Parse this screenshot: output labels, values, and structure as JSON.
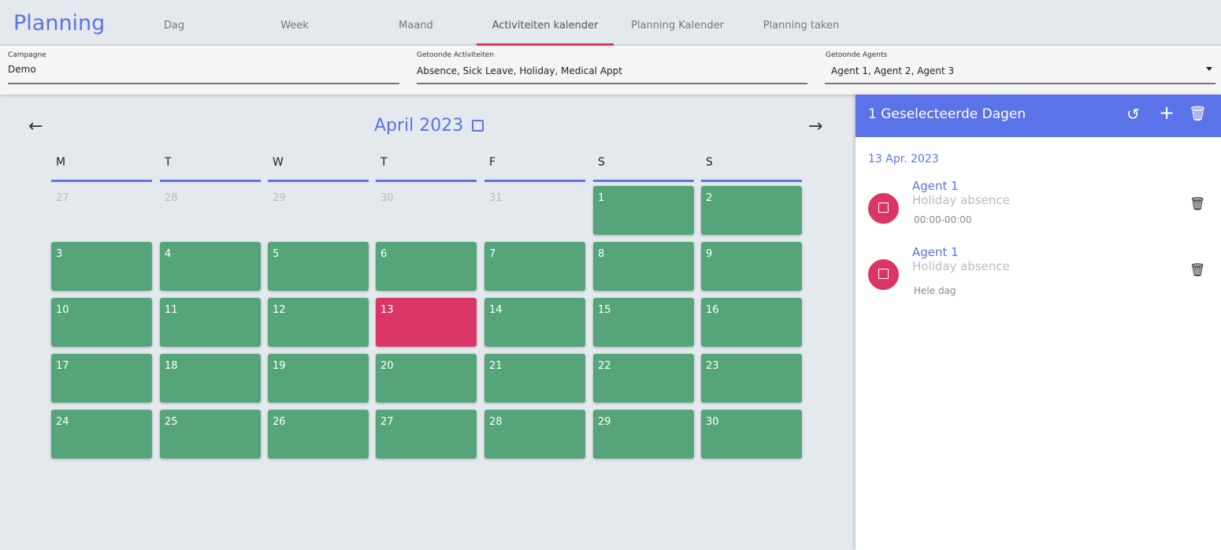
{
  "header": {
    "title": "Planning",
    "tabs": [
      {
        "label": "Dag"
      },
      {
        "label": "Week"
      },
      {
        "label": "Maand"
      },
      {
        "label": "Activiteiten kalender",
        "active": true
      },
      {
        "label": "Planning Kalender"
      },
      {
        "label": "Planning taken"
      }
    ]
  },
  "filters": {
    "campaign": {
      "label": "Campagne",
      "value": "Demo"
    },
    "activities": {
      "label": "Getoonde Activiteiten",
      "value": "Absence, Sick Leave, Holiday, Medical Appt"
    },
    "agents": {
      "label": "Getoonde Agents",
      "value": "Agent 1, Agent 2, Agent 3"
    }
  },
  "calendar": {
    "month": "April 2023",
    "weekdays": [
      "M",
      "T",
      "W",
      "T",
      "F",
      "S",
      "S"
    ],
    "days": [
      [
        "27",
        "f"
      ],
      [
        "28",
        "f"
      ],
      [
        "29",
        "f"
      ],
      [
        "30",
        "f"
      ],
      [
        "31",
        "f"
      ],
      [
        "1",
        "g"
      ],
      [
        "2",
        "g"
      ],
      [
        "3",
        "g"
      ],
      [
        "4",
        "g"
      ],
      [
        "5",
        "g"
      ],
      [
        "6",
        "g"
      ],
      [
        "7",
        "g"
      ],
      [
        "8",
        "g"
      ],
      [
        "9",
        "g"
      ],
      [
        "10",
        "g"
      ],
      [
        "11",
        "g"
      ],
      [
        "12",
        "g"
      ],
      [
        "13",
        "r"
      ],
      [
        "14",
        "g"
      ],
      [
        "15",
        "g"
      ],
      [
        "16",
        "g"
      ],
      [
        "17",
        "g"
      ],
      [
        "18",
        "g"
      ],
      [
        "19",
        "g"
      ],
      [
        "20",
        "g"
      ],
      [
        "21",
        "g"
      ],
      [
        "22",
        "g"
      ],
      [
        "23",
        "g"
      ],
      [
        "24",
        "g"
      ],
      [
        "25",
        "g"
      ],
      [
        "26",
        "g"
      ],
      [
        "27",
        "g"
      ],
      [
        "28",
        "g"
      ],
      [
        "29",
        "g"
      ],
      [
        "30",
        "g"
      ]
    ],
    "colors": {
      "activity": "#56a57a",
      "selected": "#d93666",
      "accent": "#5b73e8"
    }
  },
  "panel": {
    "title": "1 Geselecteerde Dagen",
    "date": "13 Apr. 2023",
    "icons": [
      "undo-icon",
      "plus-icon",
      "trash-icon"
    ],
    "items": [
      {
        "agent": "Agent 1",
        "type": "Holiday absence",
        "time": "00:00-00:00"
      },
      {
        "agent": "Agent 1",
        "type": "Holiday absence",
        "time": "Hele dag"
      }
    ]
  }
}
